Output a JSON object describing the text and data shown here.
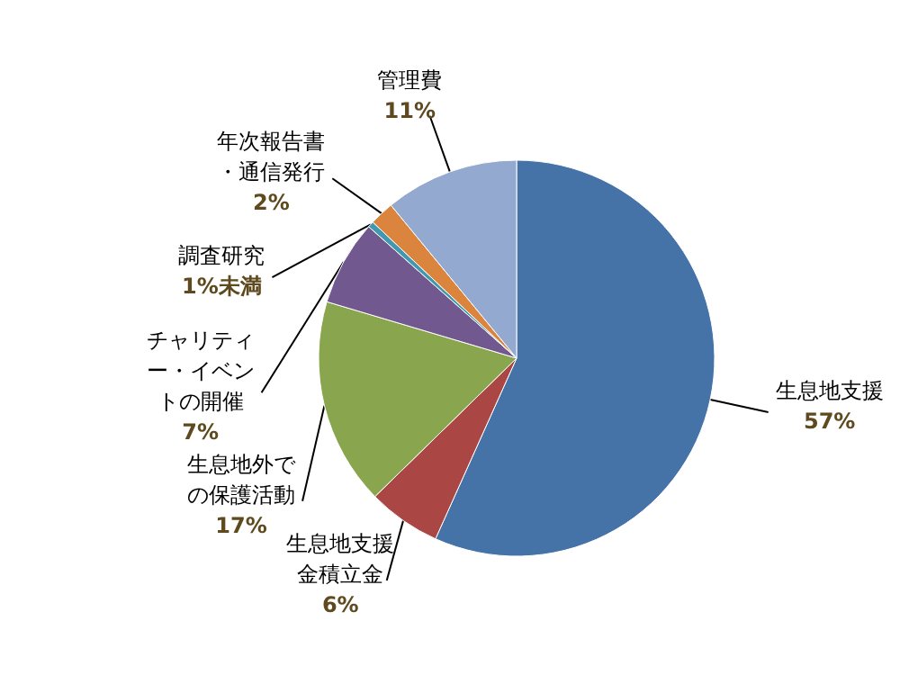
{
  "chart_data": {
    "type": "pie",
    "categories": [
      "生息地支援",
      "生息地支援金積立金",
      "生息地外での保護活動",
      "チャリティー・イベントの開催",
      "調査研究",
      "年次報告書・通信発行",
      "管理費"
    ],
    "values": [
      57,
      6,
      17,
      7,
      0.5,
      2,
      11
    ],
    "value_labels": [
      "57%",
      "6%",
      "17%",
      "7%",
      "1%未満",
      "2%",
      "11%"
    ],
    "colors": [
      "#4572a7",
      "#aa4643",
      "#89a54e",
      "#71588f",
      "#4198af",
      "#db843d",
      "#93a9cf"
    ]
  }
}
